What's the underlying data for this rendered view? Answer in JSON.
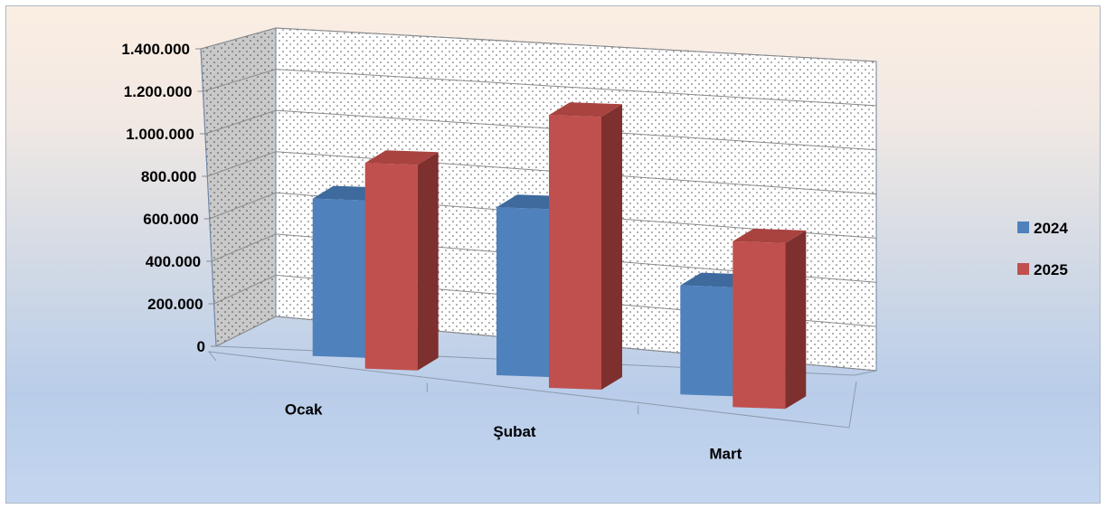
{
  "chart_data": {
    "type": "bar",
    "title": "",
    "xlabel": "",
    "ylabel": "",
    "categories": [
      "Ocak",
      "Şubat",
      "Mart"
    ],
    "series": [
      {
        "name": "2024",
        "values": [
          750000,
          800000,
          520000
        ],
        "color": "#4f81bd",
        "top_color": "#3e6a9e",
        "side_color": "#2f5580"
      },
      {
        "name": "2025",
        "values": [
          980000,
          1300000,
          790000
        ],
        "color": "#c0504d",
        "top_color": "#a94340",
        "side_color": "#7e302e"
      }
    ],
    "ylim": [
      0,
      1400000
    ],
    "yticks": [
      0,
      200000,
      400000,
      600000,
      800000,
      1000000,
      1200000,
      1400000
    ],
    "ytick_labels": [
      "0",
      "200.000",
      "400.000",
      "600.000",
      "800.000",
      "1.000.000",
      "1.200.000",
      "1.400.000"
    ],
    "grid": true,
    "legend_position": "right",
    "view": "3d-perspective"
  }
}
